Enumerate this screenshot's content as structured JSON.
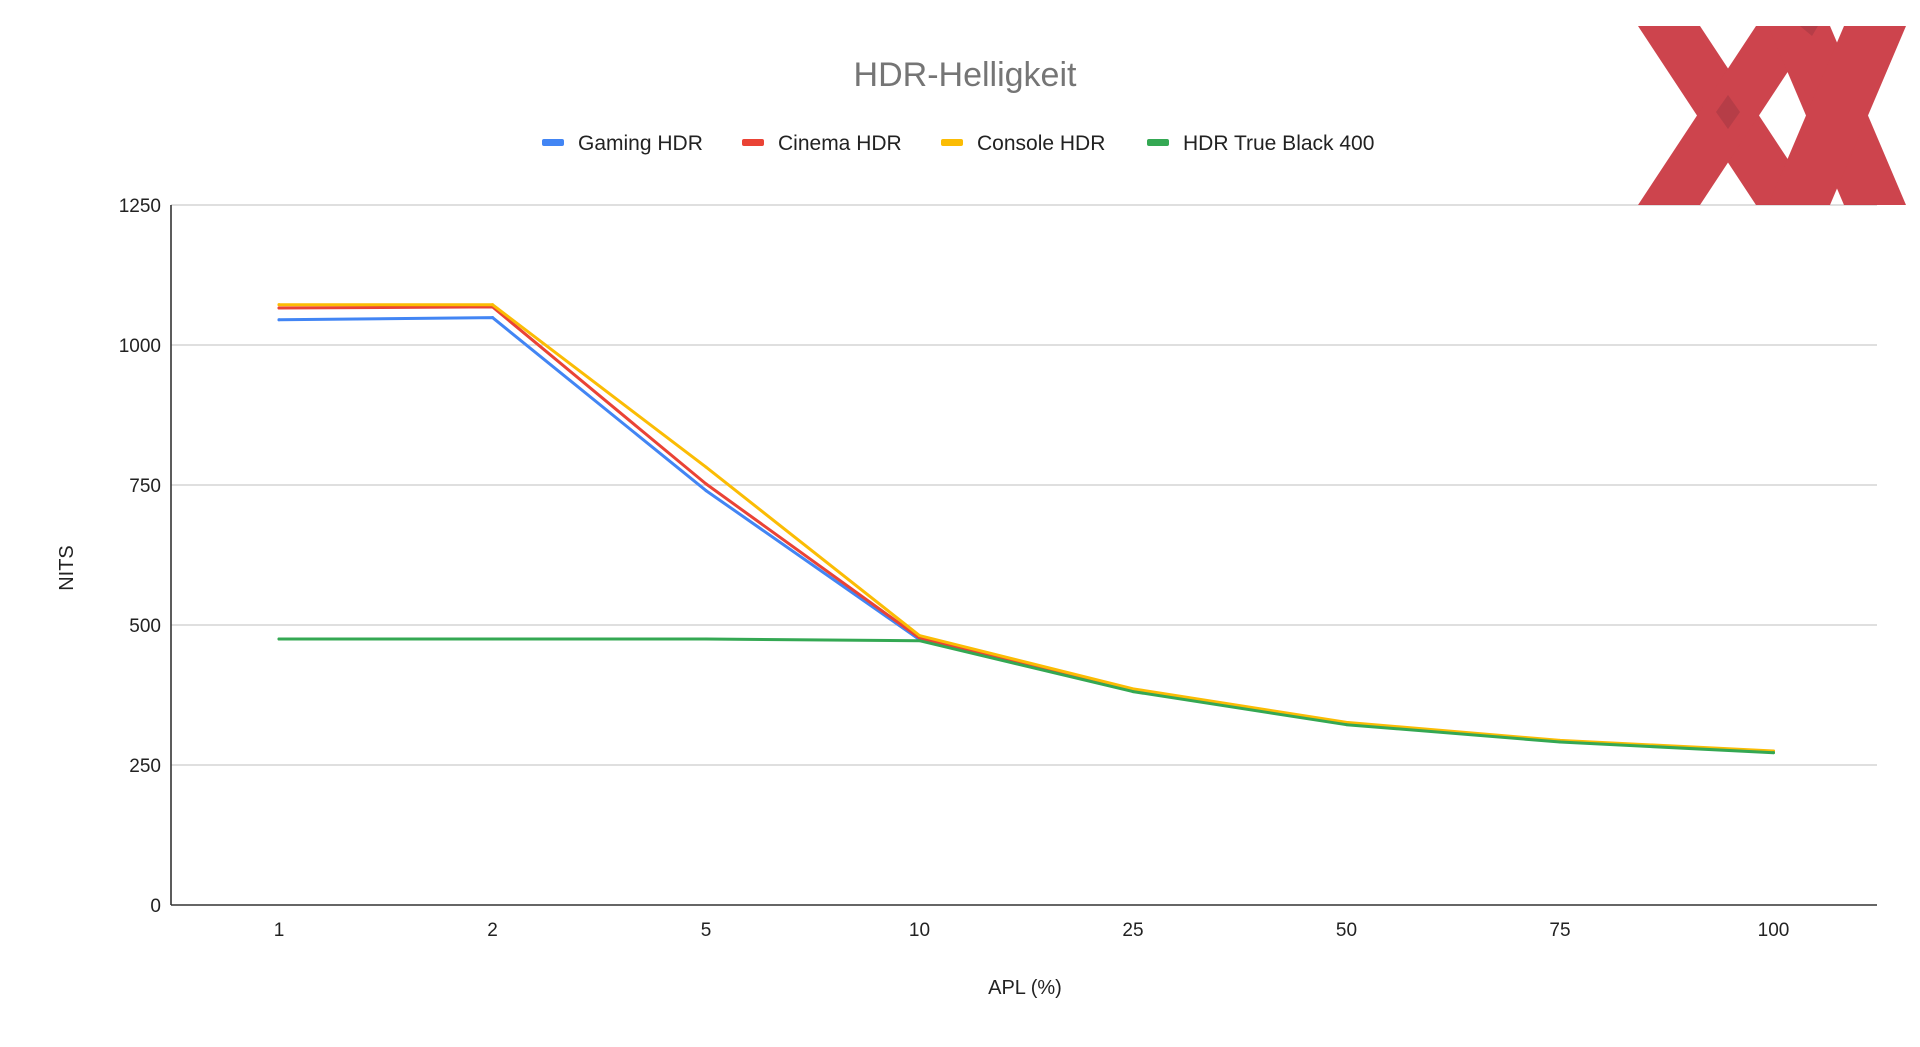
{
  "chart_data": {
    "type": "line",
    "title": "HDR-Helligkeit",
    "xlabel": "APL (%)",
    "ylabel": "NITS",
    "categories": [
      "1",
      "2",
      "5",
      "10",
      "25",
      "50",
      "75",
      "100"
    ],
    "ylim": [
      0,
      1250
    ],
    "yticks": [
      "0",
      "250",
      "500",
      "750",
      "1000",
      "1250"
    ],
    "grid": true,
    "legend_position": "top",
    "series": [
      {
        "name": "Gaming HDR",
        "color": "#4285f4",
        "values": [
          1045,
          1049,
          740,
          474,
          383,
          323,
          292,
          274
        ]
      },
      {
        "name": "Cinema HDR",
        "color": "#ea4335",
        "values": [
          1066,
          1068,
          752,
          477,
          384,
          324,
          292,
          274
        ]
      },
      {
        "name": "Console HDR",
        "color": "#fbbc04",
        "values": [
          1072,
          1072,
          782,
          481,
          386,
          326,
          294,
          275
        ]
      },
      {
        "name": "HDR True Black 400",
        "color": "#34a853",
        "values": [
          475,
          475,
          475,
          472,
          381,
          322,
          291,
          272
        ]
      }
    ]
  },
  "logo": {
    "name": "xx-logo",
    "color": "#c8303a"
  }
}
